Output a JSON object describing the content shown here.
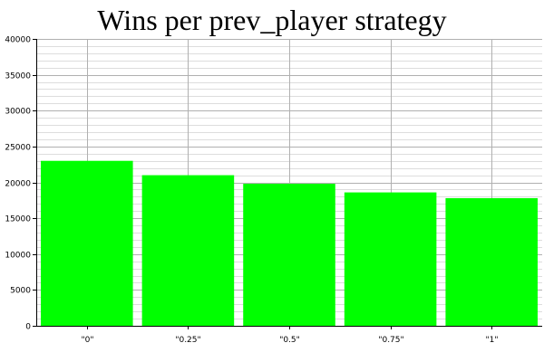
{
  "chart_data": {
    "type": "bar",
    "title": "Wins per prev_player strategy",
    "xlabel": "",
    "ylabel": "",
    "categories": [
      "\"0\"",
      "\"0.25\"",
      "\"0.5\"",
      "\"0.75\"",
      "\"1\""
    ],
    "values": [
      23000,
      21000,
      19800,
      18600,
      17800
    ],
    "ylim": [
      0,
      40000
    ],
    "y_ticks": [
      "0",
      "5000",
      "10000",
      "15000",
      "20000",
      "25000",
      "30000",
      "35000",
      "40000"
    ],
    "y_major_step": 5000,
    "y_minor_step": 1000,
    "grid": true,
    "legend": "none",
    "bar_color": "#00ff00",
    "grid_major_color": "#b0b0b0",
    "grid_minor_color": "#dddddd",
    "axis_color": "#000000"
  }
}
